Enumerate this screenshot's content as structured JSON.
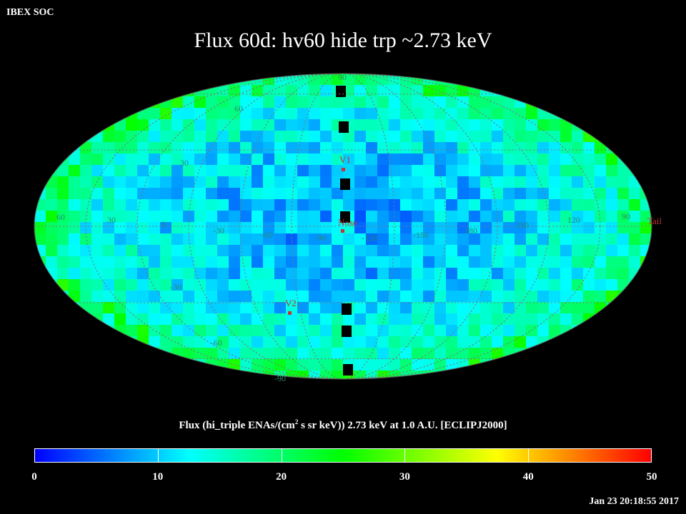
{
  "header": {
    "org": "IBEX SOC",
    "title": "Flux   60d: hv60 hide trp ~2.73 keV"
  },
  "map": {
    "projection": "Aitoff (ecliptic)",
    "longitude_labels": [
      "60",
      "30",
      "0",
      "-30",
      "-60",
      "-90",
      "-120",
      "-150",
      "180",
      "150",
      "120",
      "90"
    ],
    "latitude_labels": {
      "north": [
        "90",
        "60",
        "30"
      ],
      "south": [
        "-30",
        "-60",
        "-90"
      ]
    },
    "markers": {
      "nose": "Nose",
      "tail": "Tail",
      "v1": "V1",
      "v2": "V2"
    },
    "colors": {
      "grid": "#7a7a7a",
      "marker": "#c83232",
      "graticule_text": "#2a8a6a"
    }
  },
  "colorbar": {
    "label_pre": "Flux (hi_triple ENAs/(cm",
    "label_sup": "2",
    "label_post": " s sr keV))  2.73 keV at 1.0 A.U. [ECLIPJ2000]",
    "ticks": [
      "0",
      "10",
      "20",
      "30",
      "40",
      "50"
    ],
    "min": 0,
    "max": 50,
    "stops": [
      "#0000ff",
      "#00ffff",
      "#00ff00",
      "#ffff00",
      "#ff0000"
    ]
  },
  "footer": {
    "timestamp": "Jan 23 20:18:55 2017"
  }
}
